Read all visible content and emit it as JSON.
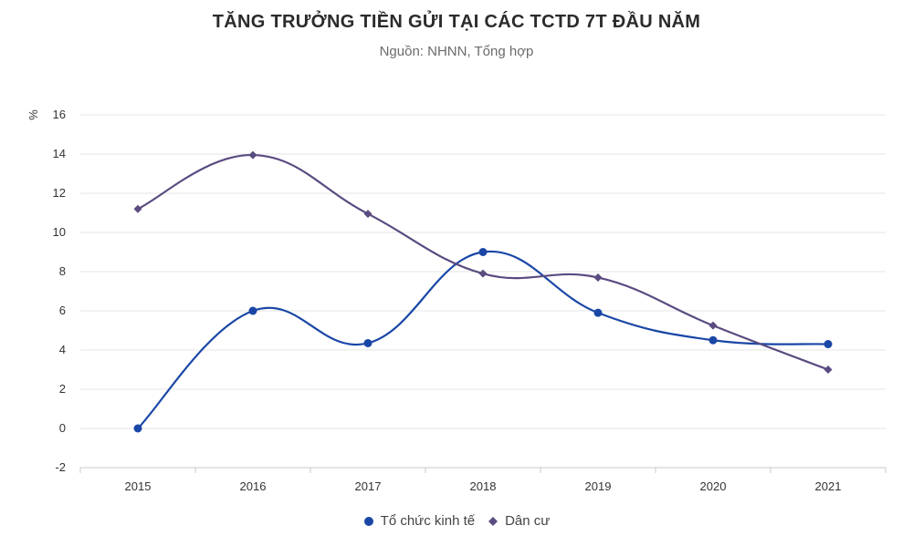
{
  "colors": {
    "series1": "#1a47a6",
    "series2": "#5a4b80",
    "grid": "#e6e6e6",
    "axis": "#c8c8c8"
  },
  "chart_data": {
    "type": "line",
    "title": "TĂNG TRƯỞNG TIỀN GỬI TẠI CÁC TCTD 7T ĐẦU NĂM",
    "subtitle": "Nguồn: NHNN, Tổng hợp",
    "ylabel": "%",
    "xlabel": "",
    "categories": [
      "2015",
      "2016",
      "2017",
      "2018",
      "2019",
      "2020",
      "2021"
    ],
    "ylim": [
      -2,
      16
    ],
    "yticks": [
      "16",
      "14",
      "12",
      "10",
      "8",
      "6",
      "4",
      "2",
      "0",
      "-2"
    ],
    "grid": true,
    "smooth": true,
    "legend_position": "bottom",
    "series": [
      {
        "name": "Tổ chức kinh tế",
        "marker": "circle",
        "values": [
          0,
          6,
          4.35,
          9,
          5.9,
          4.5,
          4.3
        ]
      },
      {
        "name": "Dân cư",
        "marker": "diamond",
        "values": [
          11.2,
          13.95,
          10.95,
          7.9,
          7.7,
          5.25,
          3
        ]
      }
    ]
  }
}
